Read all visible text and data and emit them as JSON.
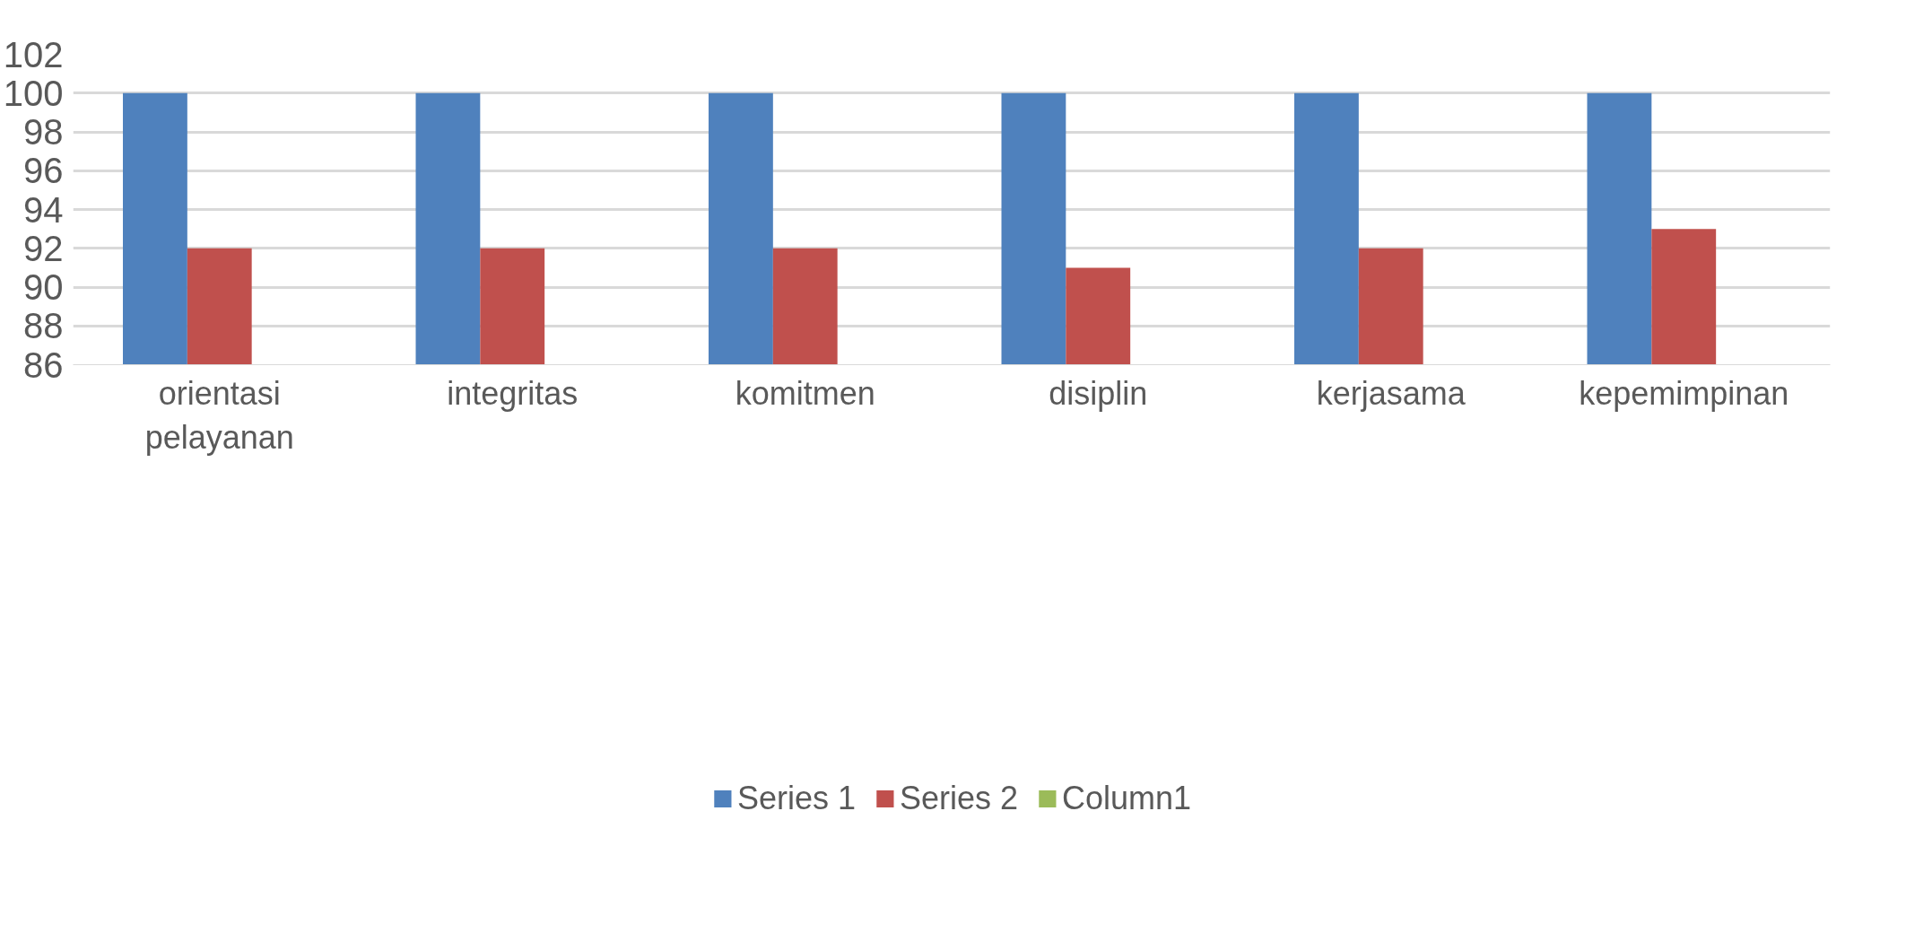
{
  "chart_data": {
    "type": "bar",
    "categories": [
      "orientasi pelayanan",
      "integritas",
      "komitmen",
      "disiplin",
      "kerjasama",
      "kepemimpinan"
    ],
    "series": [
      {
        "name": "Series 1",
        "color": "#4f81bd",
        "values": [
          100,
          100,
          100,
          100,
          100,
          100
        ]
      },
      {
        "name": "Series 2",
        "color": "#c0504d",
        "values": [
          92,
          92,
          92,
          91,
          92,
          93
        ]
      },
      {
        "name": "Column1",
        "color": "#9bbb59",
        "values": [
          null,
          null,
          null,
          null,
          null,
          null
        ]
      }
    ],
    "ylim": [
      86,
      102
    ],
    "yticks": [
      86,
      88,
      90,
      92,
      94,
      96,
      98,
      100,
      102
    ],
    "grid": "y",
    "legend": "bottom"
  }
}
